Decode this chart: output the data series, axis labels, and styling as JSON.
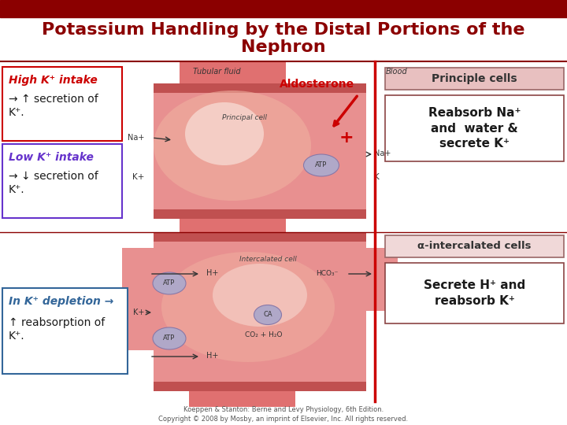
{
  "title_line1": "Potassium Handling by the Distal Portions of the",
  "title_line2": "Nephron",
  "title_color": "#8B0000",
  "title_fontsize": 16,
  "header_bar_color": "#8B0000",
  "bg_color": "#FFFFFF",
  "divider_color": "#8B0000",
  "box_high_label": "High K⁺ intake",
  "box_high_body": "→ ↑ secretion of\nK⁺.",
  "box_high_border": "#CC0000",
  "box_high_label_color": "#CC0000",
  "box_low_label": "Low K⁺ intake",
  "box_low_body": "→ ↓ secretion of\nK⁺.",
  "box_low_border": "#6633CC",
  "box_low_label_color": "#6633CC",
  "box_depletion_label": "In K⁺ depletion →",
  "box_depletion_body": "↑ reabsorption of\nK⁺.",
  "box_depletion_border": "#336699",
  "box_depletion_label_color": "#336699",
  "aldosterone_text": "Aldosterone",
  "aldosterone_color": "#CC0000",
  "principle_cells_label": "Principle cells",
  "principle_cells_bg": "#e8c0c0",
  "principle_cells_border": "#996666",
  "reabsorb_label": "Reabsorb Na⁺\nand  water &\nsecrete K⁺",
  "reabsorb_border": "#8B4444",
  "alpha_label": "α-intercalated cells",
  "alpha_bg": "#f0d8d8",
  "alpha_border": "#996666",
  "secrete_label": "Secrete H⁺ and\nreabsorb K⁺",
  "secrete_border": "#8B4444",
  "tubular_fluid_label": "Tubular fluid",
  "blood_label": "Blood",
  "tubule_color": "#E07070",
  "tubule_inner_color": "#E89090",
  "tubule_light_color": "#F0B0A0",
  "cell_glow": "#F8E0D8",
  "footer_text": "Koeppen & Stanton: Berne and Levy Physiology, 6th Edition.\nCopyright © 2008 by Mosby, an imprint of Elsevier, Inc. All rights reserved.",
  "footer_color": "#555555",
  "footer_fontsize": 6
}
